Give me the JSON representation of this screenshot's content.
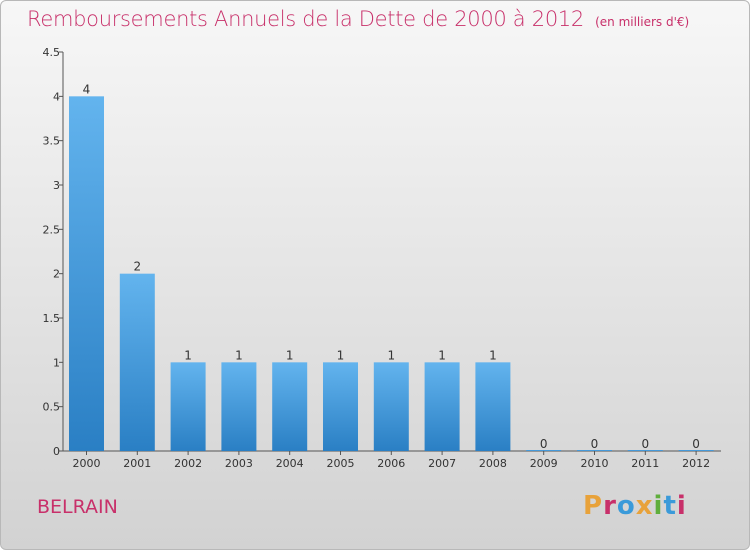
{
  "page": {
    "title": "Remboursements Annuels de la Dette de 2000 à 2012",
    "unit": "(en milliers d'€)",
    "commune": "BELRAIN",
    "logo": {
      "text": "Proxiti",
      "colors": [
        "#e8a23a",
        "#c8306a",
        "#3a9ad9",
        "#e8a23a",
        "#5fae3c",
        "#3a9ad9",
        "#c8306a"
      ]
    }
  },
  "colors": {
    "title": "#c8306a",
    "bar_top": "#63b4ee",
    "bar_bottom": "#2a7fc4",
    "axis": "#555555"
  },
  "chart_data": {
    "type": "bar",
    "categories": [
      "2000",
      "2001",
      "2002",
      "2003",
      "2004",
      "2005",
      "2006",
      "2007",
      "2008",
      "2009",
      "2010",
      "2011",
      "2012"
    ],
    "values": [
      4,
      2,
      1,
      1,
      1,
      1,
      1,
      1,
      1,
      0,
      0,
      0,
      0
    ],
    "yticks": [
      "0",
      "0.5",
      "1",
      "1.5",
      "2",
      "2.5",
      "3",
      "3.5",
      "4",
      "4.5"
    ],
    "ylim": [
      0,
      4.5
    ],
    "grid": false,
    "legend": "none"
  }
}
